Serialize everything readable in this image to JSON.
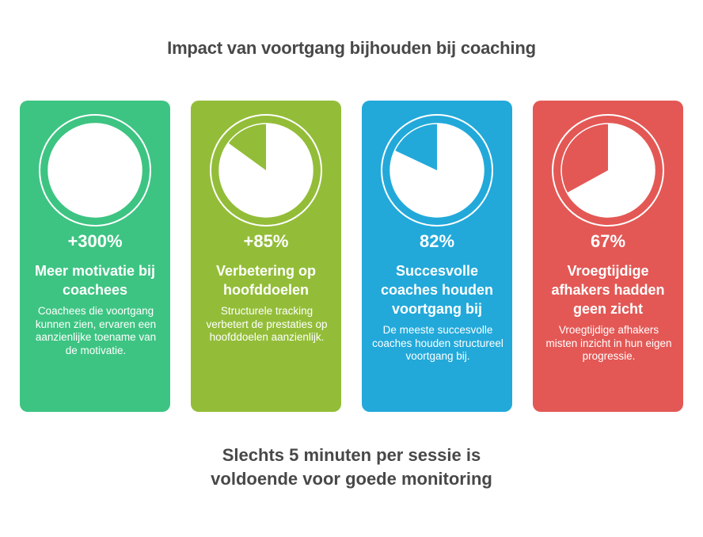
{
  "title": "Impact van voortgang bijhouden bij coaching",
  "cards": [
    {
      "value": "+300%",
      "heading": "Meer motivatie bij coachees",
      "description": "Coachees die voortgang kunnen zien, ervaren een aanzienlijke toename van de motivatie.",
      "color": "#3DC482",
      "pie_percent": 100,
      "icon": "pie-chart-icon"
    },
    {
      "value": "+85%",
      "heading": "Verbetering op hoofddoelen",
      "description": "Structurele tracking verbetert de prestaties op hoofddoelen aanzienlijk.",
      "color": "#93BD38",
      "pie_percent": 85,
      "icon": "pie-chart-icon"
    },
    {
      "value": "82%",
      "heading": "Succesvolle coaches houden voortgang bij",
      "description": "De meeste succesvolle coaches houden structureel voortgang bij.",
      "color": "#22A9DA",
      "pie_percent": 82,
      "icon": "pie-chart-icon"
    },
    {
      "value": "67%",
      "heading": "Vroegtijdige afhakers hadden geen zicht",
      "description": "Vroegtijdige afhakers misten inzicht in hun eigen progressie.",
      "color": "#E35855",
      "pie_percent": 67,
      "icon": "pie-chart-icon"
    }
  ],
  "footer": {
    "line1": "Slechts 5 minuten per sessie is",
    "line2": "voldoende voor goede monitoring"
  }
}
